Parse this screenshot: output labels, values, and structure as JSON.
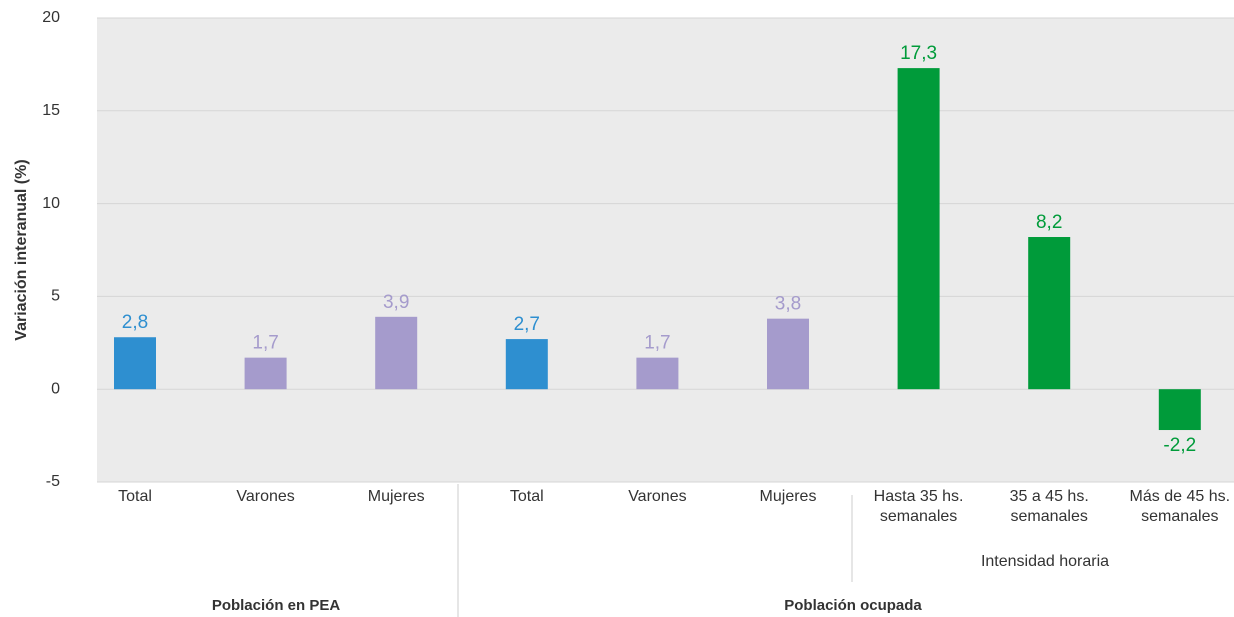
{
  "chart_data": {
    "type": "bar",
    "y_label": "Variación interanual (%)",
    "categories": [
      "Total",
      "Varones",
      "Mujeres",
      "Total",
      "Varones",
      "Mujeres",
      "Hasta 35 hs. semanales",
      "35 a 45 hs. semanales",
      "Más de 45 hs. semanales"
    ],
    "values": [
      2.8,
      1.7,
      3.9,
      2.7,
      1.7,
      3.8,
      17.3,
      8.2,
      -2.2
    ],
    "value_labels": [
      "2,8",
      "1,7",
      "3,9",
      "2,7",
      "1,7",
      "3,8",
      "17,3",
      "8,2",
      "-2,2"
    ],
    "colors": [
      "#2e8fd0",
      "#a59bcc",
      "#a59bcc",
      "#2e8fd0",
      "#a59bcc",
      "#a59bcc",
      "#009b3a",
      "#009b3a",
      "#009b3a"
    ],
    "groups": [
      "Población en PEA",
      "Población ocupada",
      "Intensidad horaria"
    ],
    "ylim": [
      -5,
      20
    ],
    "yticks": [
      -5,
      0,
      5,
      10,
      15,
      20
    ],
    "grid": true
  }
}
